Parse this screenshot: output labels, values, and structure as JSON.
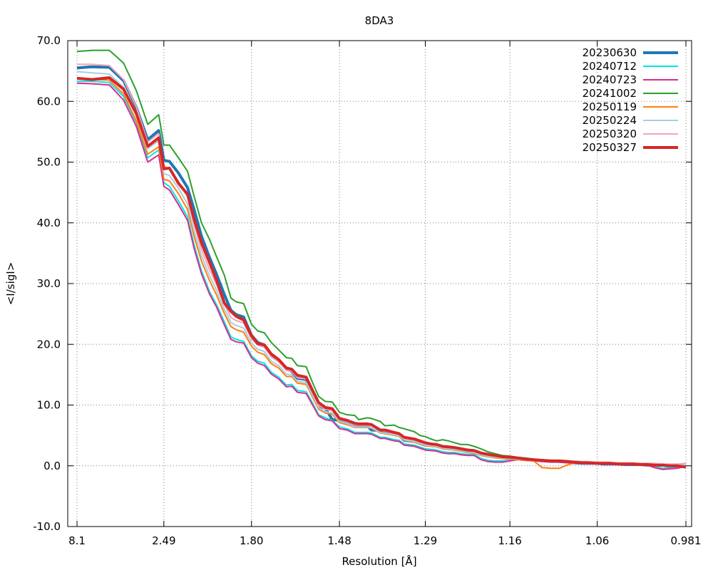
{
  "chart_data": {
    "type": "line",
    "title": "8DA3",
    "xlabel": "Resolution [Å]",
    "ylabel": "<I/sigI>",
    "ylim": [
      -10,
      70
    ],
    "y_ticks": [
      -10,
      0,
      10,
      20,
      30,
      40,
      50,
      60,
      70
    ],
    "y_tick_labels": [
      "-10.0",
      "0.0",
      "10.0",
      "20.0",
      "30.0",
      "40.0",
      "50.0",
      "60.0",
      "70.0"
    ],
    "x_ticks": [
      8.1,
      2.49,
      1.8,
      1.48,
      1.29,
      1.16,
      1.06,
      0.981
    ],
    "x_tick_labels": [
      "8.1",
      "2.49",
      "1.80",
      "1.48",
      "1.29",
      "1.16",
      "1.06",
      "0.981"
    ],
    "grid": true,
    "legend_position": "top-right",
    "x": [
      8.1,
      4.96,
      3.79,
      3.27,
      2.95,
      2.73,
      2.56,
      2.49,
      2.42,
      2.32,
      2.23,
      2.17,
      2.11,
      2.05,
      2.0,
      1.95,
      1.91,
      1.88,
      1.84,
      1.8,
      1.77,
      1.74,
      1.71,
      1.68,
      1.65,
      1.63,
      1.61,
      1.58,
      1.56,
      1.54,
      1.52,
      1.5,
      1.48,
      1.46,
      1.44,
      1.43,
      1.41,
      1.4,
      1.38,
      1.37,
      1.35,
      1.34,
      1.33,
      1.31,
      1.3,
      1.29,
      1.28,
      1.27,
      1.26,
      1.25,
      1.24,
      1.23,
      1.22,
      1.21,
      1.2,
      1.19,
      1.18,
      1.17,
      1.16,
      1.15,
      1.14,
      1.13,
      1.12,
      1.11,
      1.1,
      1.09,
      1.085,
      1.075,
      1.07,
      1.06,
      1.055,
      1.048,
      1.04,
      1.033,
      1.026,
      1.02,
      1.013,
      1.007,
      1.0,
      0.994,
      0.988,
      0.981
    ],
    "series": [
      {
        "name": "20230630",
        "color": "#1f77b4",
        "width": 4,
        "values": [
          65.5,
          65.7,
          65.6,
          63.4,
          59.0,
          53.7,
          55.2,
          50.3,
          50.1,
          48.2,
          45.8,
          42.1,
          37.8,
          34.3,
          31.5,
          28.2,
          25.6,
          24.9,
          24.5,
          21.5,
          20.3,
          19.9,
          18.1,
          17.4,
          15.9,
          15.6,
          14.4,
          14.2,
          12.1,
          9.8,
          9.5,
          7.6,
          7.5,
          6.9,
          6.7,
          6.7,
          6.6,
          5.9,
          5.8,
          5.4,
          5.2,
          5.0,
          4.2,
          4.0,
          3.7,
          3.4,
          3.6,
          3.5,
          3.2,
          3.1,
          3.0,
          2.8,
          2.6,
          2.5,
          2.1,
          1.8,
          1.6,
          1.5,
          1.3,
          1.2,
          1.1,
          1.0,
          0.9,
          0.8,
          0.7,
          0.6,
          0.5,
          0.4,
          0.4,
          0.4,
          0.3,
          0.3,
          0.3,
          0.2,
          0.2,
          0.2,
          0.1,
          0.1,
          0.1,
          0.0,
          0.0,
          0.1
        ]
      },
      {
        "name": "20240712",
        "color": "#00e5e5",
        "width": 2,
        "values": [
          63.3,
          63.3,
          63.1,
          60.8,
          56.5,
          50.7,
          52.0,
          46.6,
          46.0,
          43.6,
          41.0,
          36.3,
          32.1,
          28.7,
          26.5,
          23.7,
          21.2,
          20.8,
          20.5,
          18.1,
          17.2,
          16.9,
          15.4,
          14.6,
          13.3,
          13.4,
          12.4,
          12.2,
          10.4,
          8.4,
          7.9,
          7.5,
          6.4,
          6.1,
          5.5,
          5.5,
          5.5,
          5.4,
          4.7,
          4.7,
          4.3,
          4.2,
          3.6,
          3.4,
          3.1,
          2.8,
          2.7,
          2.6,
          2.3,
          2.2,
          2.2,
          2.0,
          1.9,
          1.9,
          1.2,
          0.9,
          0.8,
          0.8,
          0.9,
          1.1,
          1.0,
          0.9,
          0.8,
          0.7,
          0.7,
          0.6,
          0.6,
          0.5,
          0.5,
          0.5,
          0.4,
          0.4,
          0.3,
          0.3,
          0.3,
          0.2,
          0.2,
          -0.1,
          -0.4,
          -0.3,
          -0.2,
          0.0
        ]
      },
      {
        "name": "20240723",
        "color": "#d62f8f",
        "width": 2,
        "values": [
          63.0,
          62.9,
          62.7,
          60.2,
          55.9,
          50.0,
          51.2,
          46.0,
          45.4,
          43.0,
          40.4,
          35.7,
          31.6,
          28.3,
          26.1,
          23.2,
          20.8,
          20.4,
          20.2,
          17.8,
          16.9,
          16.5,
          15.1,
          14.3,
          13.0,
          13.1,
          12.1,
          11.9,
          10.1,
          8.2,
          7.6,
          7.4,
          6.1,
          5.9,
          5.3,
          5.3,
          5.3,
          5.2,
          4.5,
          4.5,
          4.1,
          4.0,
          3.4,
          3.2,
          2.9,
          2.6,
          2.5,
          2.4,
          2.1,
          2.0,
          2.0,
          1.8,
          1.7,
          1.7,
          1.0,
          0.7,
          0.6,
          0.6,
          0.8,
          1.0,
          0.9,
          0.8,
          0.7,
          0.6,
          0.6,
          0.5,
          0.5,
          0.4,
          0.4,
          0.4,
          0.3,
          0.3,
          0.2,
          0.2,
          0.2,
          0.1,
          0.1,
          -0.3,
          -0.6,
          -0.5,
          -0.4,
          -0.1
        ]
      },
      {
        "name": "20241002",
        "color": "#2ca02c",
        "width": 2,
        "values": [
          68.2,
          68.4,
          68.4,
          66.3,
          61.8,
          56.2,
          57.8,
          52.8,
          52.8,
          50.7,
          48.5,
          44.3,
          40.0,
          37.3,
          34.4,
          31.4,
          27.6,
          27.0,
          26.7,
          23.3,
          22.2,
          21.9,
          20.3,
          19.1,
          17.8,
          17.7,
          16.5,
          16.3,
          13.8,
          11.4,
          10.6,
          10.5,
          8.8,
          8.4,
          8.3,
          7.6,
          7.9,
          7.8,
          7.3,
          6.6,
          6.7,
          6.3,
          6.1,
          5.6,
          5.0,
          4.8,
          4.4,
          4.1,
          4.3,
          4.1,
          3.8,
          3.5,
          3.5,
          3.2,
          2.8,
          2.3,
          2.0,
          1.7,
          1.6,
          1.4,
          1.3,
          1.1,
          1.0,
          0.9,
          0.8,
          0.8,
          0.7,
          0.6,
          0.6,
          0.6,
          0.5,
          0.5,
          0.5,
          0.5,
          0.4,
          0.4,
          0.3,
          0.3,
          0.3,
          0.2,
          0.2,
          0.3
        ]
      },
      {
        "name": "20250119",
        "color": "#ff7f0e",
        "width": 2,
        "values": [
          63.7,
          63.6,
          63.5,
          61.2,
          56.8,
          51.3,
          52.5,
          47.2,
          46.9,
          44.8,
          42.2,
          37.7,
          33.7,
          30.5,
          28.1,
          25.1,
          22.9,
          22.4,
          22.0,
          19.7,
          18.7,
          18.3,
          16.8,
          16.1,
          14.7,
          14.7,
          13.6,
          13.4,
          11.4,
          9.3,
          8.7,
          8.5,
          7.1,
          6.8,
          6.3,
          6.3,
          6.3,
          6.2,
          5.4,
          5.3,
          5.0,
          4.8,
          4.2,
          3.9,
          3.6,
          3.3,
          3.2,
          3.1,
          2.8,
          2.7,
          2.6,
          2.4,
          2.2,
          2.1,
          1.7,
          1.5,
          1.3,
          1.2,
          1.1,
          1.0,
          0.9,
          0.8,
          -0.3,
          -0.4,
          -0.4,
          0.2,
          0.4,
          0.5,
          0.5,
          0.4,
          0.4,
          0.3,
          0.3,
          0.2,
          0.2,
          0.1,
          0.1,
          0.1,
          0.0,
          0.0,
          -0.1,
          -0.1
        ]
      },
      {
        "name": "20250224",
        "color": "#a6cee3",
        "width": 2,
        "values": [
          64.9,
          64.7,
          64.5,
          62.3,
          57.8,
          52.2,
          53.5,
          48.1,
          47.8,
          45.7,
          43.1,
          38.6,
          34.6,
          31.3,
          28.9,
          25.8,
          23.6,
          23.1,
          22.7,
          20.2,
          19.2,
          18.8,
          17.2,
          16.5,
          15.1,
          15.0,
          13.9,
          13.7,
          11.7,
          9.6,
          8.9,
          8.7,
          7.3,
          7.0,
          6.4,
          6.4,
          6.4,
          6.3,
          5.5,
          5.4,
          5.1,
          4.9,
          4.3,
          4.0,
          3.7,
          3.4,
          3.3,
          3.2,
          2.9,
          2.8,
          2.7,
          2.5,
          2.3,
          2.2,
          1.8,
          1.6,
          1.4,
          1.3,
          1.2,
          1.1,
          1.0,
          0.9,
          0.8,
          0.7,
          0.7,
          0.6,
          0.6,
          0.5,
          0.5,
          0.4,
          0.4,
          0.4,
          0.3,
          0.3,
          0.3,
          0.2,
          0.2,
          0.2,
          0.1,
          0.1,
          0.1,
          0.2
        ]
      },
      {
        "name": "20250320",
        "color": "#f4a6b4",
        "width": 2,
        "values": [
          66.1,
          66.1,
          65.9,
          63.6,
          59.1,
          53.3,
          54.7,
          49.3,
          48.9,
          46.8,
          44.3,
          39.7,
          35.6,
          32.3,
          29.8,
          26.6,
          24.4,
          23.9,
          23.5,
          20.9,
          19.9,
          19.5,
          17.9,
          17.1,
          15.7,
          15.6,
          14.5,
          14.3,
          12.2,
          10.0,
          9.3,
          9.1,
          7.6,
          7.3,
          6.7,
          6.7,
          6.7,
          6.6,
          5.8,
          5.7,
          5.3,
          5.1,
          4.5,
          4.2,
          3.9,
          3.6,
          3.5,
          3.4,
          3.1,
          3.0,
          2.9,
          2.7,
          2.5,
          2.4,
          2.0,
          1.8,
          1.6,
          1.5,
          1.4,
          1.3,
          1.2,
          1.1,
          1.0,
          0.9,
          0.9,
          0.8,
          0.8,
          0.7,
          0.7,
          0.6,
          0.6,
          0.6,
          0.5,
          0.5,
          0.5,
          0.4,
          0.4,
          0.4,
          0.3,
          0.3,
          0.3,
          0.4
        ]
      },
      {
        "name": "20250327",
        "color": "#d62728",
        "width": 4,
        "values": [
          63.8,
          63.6,
          63.9,
          62.0,
          58.0,
          52.6,
          54.0,
          48.9,
          49.0,
          46.5,
          44.7,
          40.5,
          36.7,
          33.5,
          30.5,
          26.8,
          25.4,
          24.6,
          24.0,
          21.4,
          20.1,
          19.9,
          18.4,
          17.5,
          16.1,
          15.9,
          14.9,
          14.6,
          12.5,
          10.4,
          9.6,
          9.4,
          7.8,
          7.5,
          7.0,
          6.9,
          6.9,
          6.8,
          5.9,
          5.9,
          5.5,
          5.3,
          4.7,
          4.4,
          4.1,
          3.8,
          3.6,
          3.5,
          3.2,
          3.1,
          3.0,
          2.8,
          2.6,
          2.5,
          2.1,
          1.9,
          1.7,
          1.5,
          1.4,
          1.3,
          1.1,
          1.0,
          0.9,
          0.8,
          0.8,
          0.7,
          0.6,
          0.5,
          0.5,
          0.4,
          0.4,
          0.4,
          0.3,
          0.3,
          0.3,
          0.2,
          0.2,
          0.1,
          0.1,
          0.0,
          0.0,
          -0.2
        ]
      }
    ]
  }
}
